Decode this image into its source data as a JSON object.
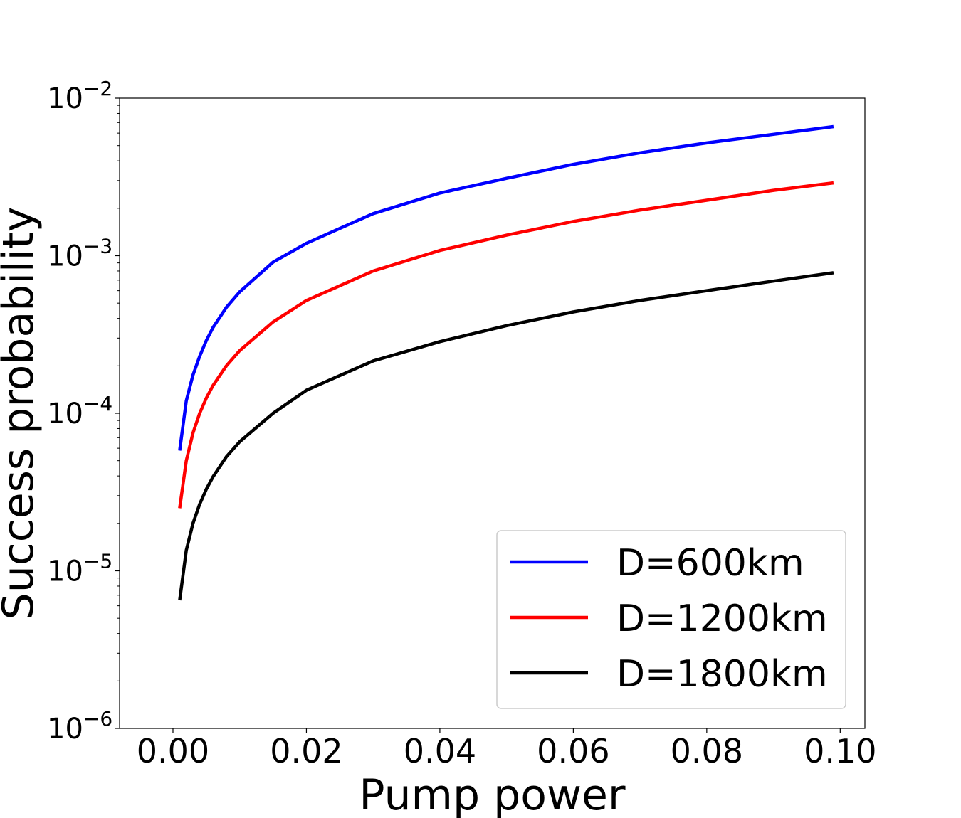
{
  "chart_data": {
    "type": "line",
    "title": "",
    "xlabel": "Pump power",
    "ylabel": "Success probability",
    "xlim": [
      -0.008,
      0.1037
    ],
    "ylim": [
      1e-06,
      0.01
    ],
    "yscale": "log",
    "grid": false,
    "legend_position": "lower-right",
    "x_ticks": [
      {
        "value": 0.0,
        "label": "0.00"
      },
      {
        "value": 0.02,
        "label": "0.02"
      },
      {
        "value": 0.04,
        "label": "0.04"
      },
      {
        "value": 0.06,
        "label": "0.06"
      },
      {
        "value": 0.08,
        "label": "0.08"
      },
      {
        "value": 0.1,
        "label": "0.10"
      }
    ],
    "y_ticks": [
      {
        "value": 1e-06,
        "base": "10",
        "exp": "−6"
      },
      {
        "value": 1e-05,
        "base": "10",
        "exp": "−5"
      },
      {
        "value": 0.0001,
        "base": "10",
        "exp": "−4"
      },
      {
        "value": 0.001,
        "base": "10",
        "exp": "−3"
      },
      {
        "value": 0.01,
        "base": "10",
        "exp": "−2"
      }
    ],
    "series": [
      {
        "name": "D=600km",
        "color": "#0000ff",
        "x": [
          0.001,
          0.002,
          0.003,
          0.004,
          0.005,
          0.006,
          0.008,
          0.01,
          0.015,
          0.02,
          0.03,
          0.04,
          0.05,
          0.06,
          0.07,
          0.08,
          0.09,
          0.099
        ],
        "y": [
          5.8e-05,
          0.00012,
          0.000175,
          0.00023,
          0.00029,
          0.00035,
          0.00047,
          0.00059,
          0.00091,
          0.0012,
          0.00185,
          0.0025,
          0.0031,
          0.0038,
          0.0045,
          0.0052,
          0.0059,
          0.0066
        ]
      },
      {
        "name": "D=1200km",
        "color": "#ff0000",
        "x": [
          0.001,
          0.002,
          0.003,
          0.004,
          0.005,
          0.006,
          0.008,
          0.01,
          0.015,
          0.02,
          0.03,
          0.04,
          0.05,
          0.06,
          0.07,
          0.08,
          0.09,
          0.099
        ],
        "y": [
          2.5e-05,
          5e-05,
          7.5e-05,
          0.0001,
          0.000125,
          0.00015,
          0.0002,
          0.00025,
          0.00038,
          0.00052,
          0.0008,
          0.00108,
          0.00135,
          0.00165,
          0.00195,
          0.00225,
          0.0026,
          0.0029
        ]
      },
      {
        "name": "D=1800km",
        "color": "#000000",
        "x": [
          0.001,
          0.002,
          0.003,
          0.004,
          0.005,
          0.006,
          0.008,
          0.01,
          0.015,
          0.02,
          0.03,
          0.04,
          0.05,
          0.06,
          0.07,
          0.08,
          0.09,
          0.099
        ],
        "y": [
          6.5e-06,
          1.35e-05,
          2e-05,
          2.65e-05,
          3.3e-05,
          3.95e-05,
          5.3e-05,
          6.6e-05,
          0.0001,
          0.00014,
          0.000215,
          0.000285,
          0.00036,
          0.00044,
          0.00052,
          0.0006,
          0.00069,
          0.00078
        ]
      }
    ]
  }
}
